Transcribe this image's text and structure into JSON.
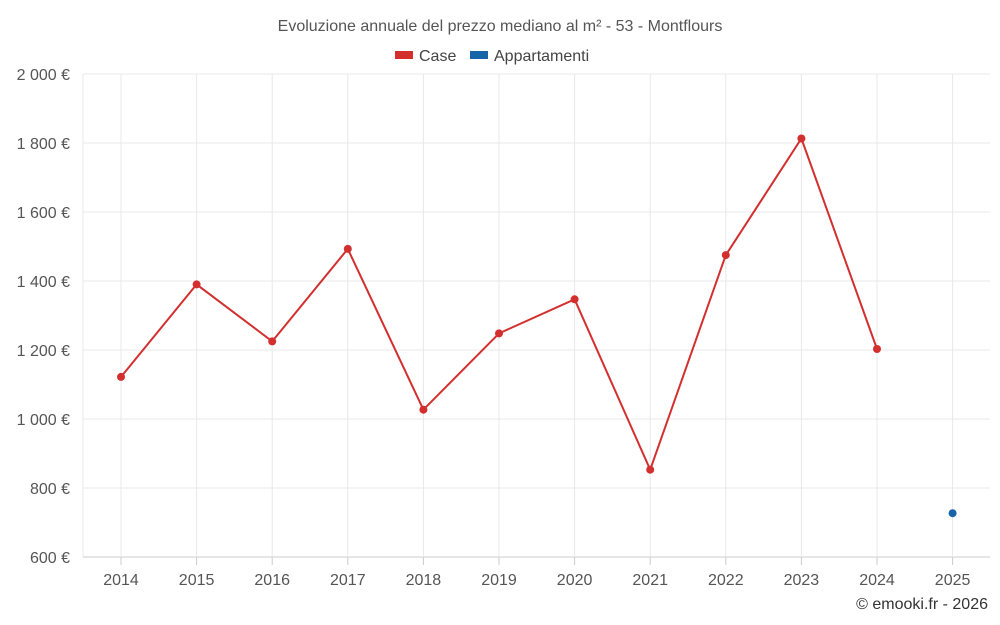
{
  "chart_data": {
    "type": "line",
    "title": "Evoluzione annuale del prezzo mediano al m² - 53 - Montflours",
    "categories": [
      "2014",
      "2015",
      "2016",
      "2017",
      "2018",
      "2019",
      "2020",
      "2021",
      "2022",
      "2023",
      "2024",
      "2025"
    ],
    "y_tick_labels": [
      "2 000 €",
      "1 800 €",
      "1 600 €",
      "1 400 €",
      "1 200 €",
      "1 000 €",
      "800 €",
      "600 €"
    ],
    "y_ticks": [
      2000,
      1800,
      1600,
      1400,
      1200,
      1000,
      800,
      600
    ],
    "ylim": [
      600,
      2000
    ],
    "grid": true,
    "legend_position": "top-center",
    "series": [
      {
        "name": "Case",
        "color": "#d32f2f",
        "values": [
          1122,
          1390,
          1225,
          1493,
          1027,
          1248,
          1347,
          853,
          1475,
          1813,
          1203,
          null
        ]
      },
      {
        "name": "Appartamenti",
        "color": "#1565a8",
        "values": [
          null,
          null,
          null,
          null,
          null,
          null,
          null,
          null,
          null,
          null,
          null,
          727
        ]
      }
    ],
    "credit": "© emooki.fr - 2026"
  }
}
